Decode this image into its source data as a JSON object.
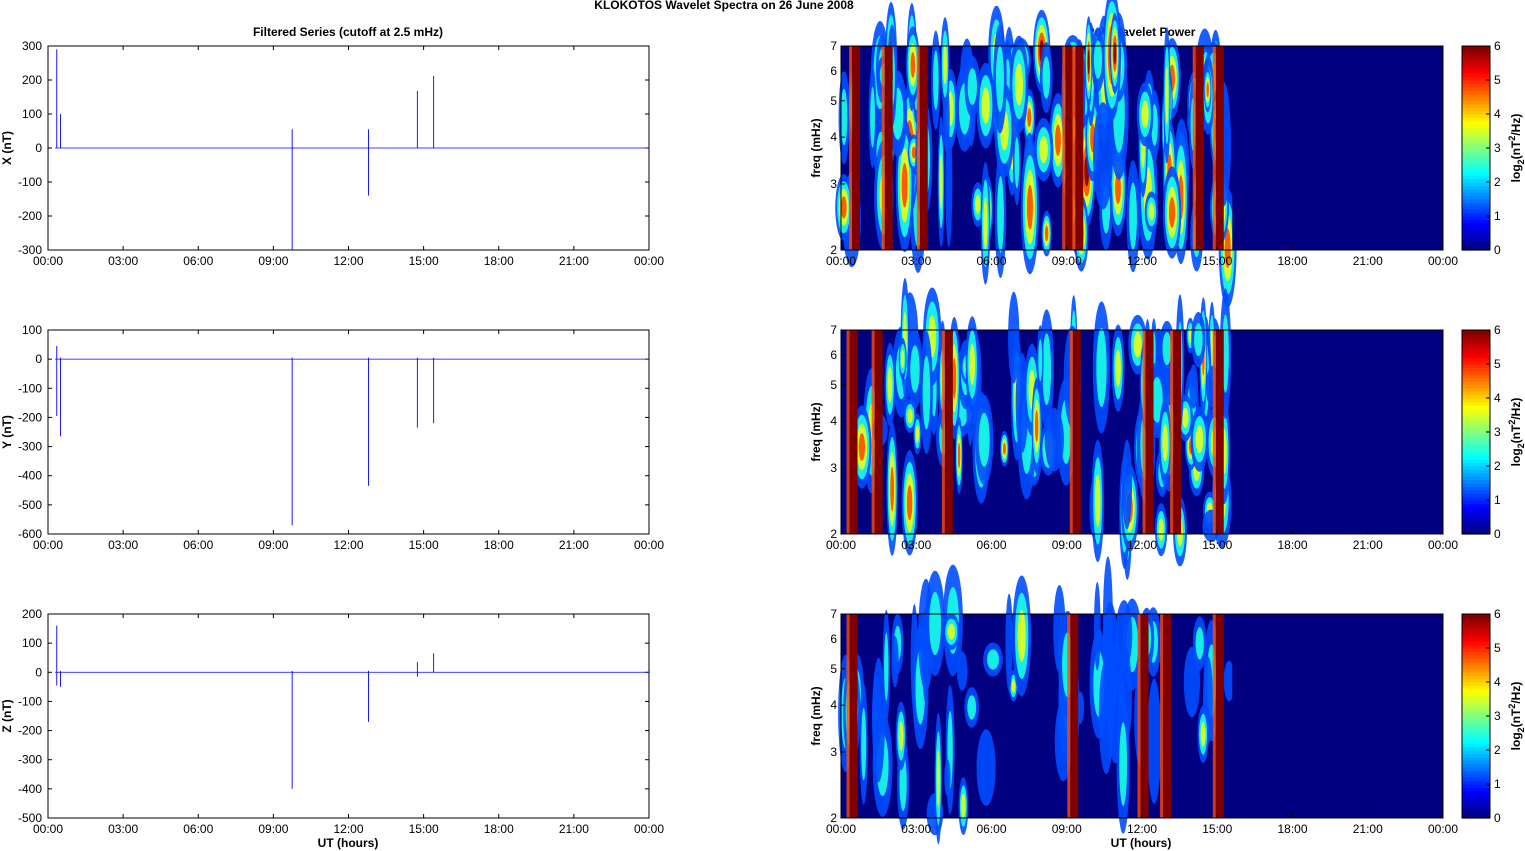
{
  "figure_title": "KLOKOTOS Wavelet Spectra on 26 June      2008",
  "left_title": "Filtered Series (cutoff at 2.5 mHz)",
  "right_title": "Pc5 Wavelet Power",
  "xlabel": "UT (hours)",
  "time_ticks": [
    "00:00",
    "03:00",
    "06:00",
    "09:00",
    "12:00",
    "15:00",
    "18:00",
    "21:00",
    "00:00"
  ],
  "colorbar": {
    "label_base": "log",
    "label_sub": "2",
    "label_open": "(nT",
    "label_sup": "2",
    "label_close": "/Hz)",
    "ticks": [
      "0",
      "1",
      "2",
      "3",
      "4",
      "5",
      "6"
    ],
    "range": [
      0,
      6
    ]
  },
  "colors": {
    "series_line": "#0000ff",
    "background": "#ffffff"
  },
  "chart_data": [
    {
      "type": "line",
      "title": "Filtered Series (cutoff at 2.5 mHz)",
      "ylabel": "X (nT)",
      "xlim": [
        0,
        24
      ],
      "ylim": [
        -300,
        300
      ],
      "yticks": [
        300,
        200,
        100,
        0,
        -100,
        -200,
        -300
      ],
      "series": [
        {
          "name": "X",
          "baseline": 0,
          "spikes": [
            [
              0.35,
              290,
              0
            ],
            [
              0.5,
              100,
              0
            ],
            [
              9.75,
              55,
              -300
            ],
            [
              12.8,
              55,
              -140
            ],
            [
              14.75,
              168,
              0
            ],
            [
              15.4,
              212,
              0
            ]
          ]
        }
      ]
    },
    {
      "type": "heatmap",
      "title": "Pc5 Wavelet Power",
      "ylabel": "freq (mHz)",
      "xlim": [
        0,
        24
      ],
      "ylim": [
        2,
        7
      ],
      "yticks": [
        7,
        6,
        5,
        4,
        3,
        2
      ],
      "zlim": [
        0,
        6
      ],
      "zlabel": "log2(nT^2/Hz)",
      "active_until_hours": 15.6
    },
    {
      "type": "line",
      "ylabel": "Y (nT)",
      "xlim": [
        0,
        24
      ],
      "ylim": [
        -600,
        100
      ],
      "yticks": [
        100,
        0,
        -100,
        -200,
        -300,
        -400,
        -500,
        -600
      ],
      "series": [
        {
          "name": "Y",
          "baseline": 0,
          "spikes": [
            [
              0.35,
              45,
              -195
            ],
            [
              0.5,
              5,
              -265
            ],
            [
              9.75,
              5,
              -570
            ],
            [
              12.8,
              5,
              -435
            ],
            [
              14.75,
              5,
              -235
            ],
            [
              15.4,
              5,
              -220
            ]
          ]
        }
      ]
    },
    {
      "type": "heatmap",
      "ylabel": "freq (mHz)",
      "xlim": [
        0,
        24
      ],
      "ylim": [
        2,
        7
      ],
      "yticks": [
        7,
        6,
        5,
        4,
        3,
        2
      ],
      "zlim": [
        0,
        6
      ],
      "zlabel": "log2(nT^2/Hz)",
      "active_until_hours": 15.6
    },
    {
      "type": "line",
      "ylabel": "Z (nT)",
      "xlim": [
        0,
        24
      ],
      "ylim": [
        -500,
        200
      ],
      "yticks": [
        200,
        100,
        0,
        -100,
        -200,
        -300,
        -400,
        -500
      ],
      "series": [
        {
          "name": "Z",
          "baseline": 0,
          "spikes": [
            [
              0.35,
              160,
              -45
            ],
            [
              0.5,
              5,
              -50
            ],
            [
              9.75,
              5,
              -400
            ],
            [
              12.8,
              5,
              -170
            ],
            [
              14.75,
              35,
              -15
            ],
            [
              15.4,
              65,
              0
            ]
          ]
        }
      ]
    },
    {
      "type": "heatmap",
      "ylabel": "freq (mHz)",
      "xlim": [
        0,
        24
      ],
      "ylim": [
        2,
        7
      ],
      "yticks": [
        7,
        6,
        5,
        4,
        3,
        2
      ],
      "zlim": [
        0,
        6
      ],
      "zlabel": "log2(nT^2/Hz)",
      "active_until_hours": 15.6
    }
  ]
}
